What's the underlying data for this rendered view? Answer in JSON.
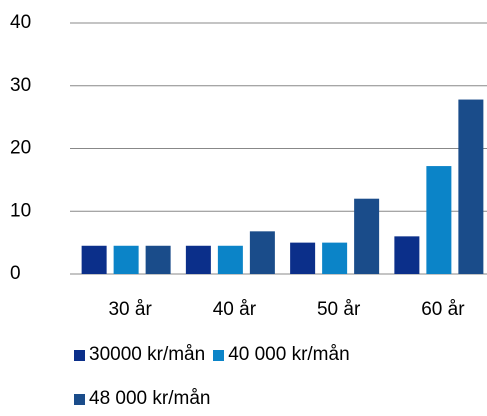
{
  "chart_data": {
    "type": "bar",
    "categories": [
      "30 år",
      "40 år",
      "50 år",
      "60 år"
    ],
    "series": [
      {
        "name": "30000 kr/mån",
        "color": "#0b2f8a",
        "values": [
          4.5,
          4.5,
          5,
          6
        ]
      },
      {
        "name": "40 000 kr/mån",
        "color": "#0b84c8",
        "values": [
          4.5,
          4.5,
          5,
          17.2
        ]
      },
      {
        "name": "48 000 kr/mån",
        "color": "#1a4c8a",
        "values": [
          4.5,
          6.8,
          12,
          27.8
        ]
      }
    ],
    "ylim": [
      0,
      40
    ],
    "yticks": [
      0,
      10,
      20,
      30,
      40
    ],
    "grid": true,
    "legend": "bottom"
  }
}
